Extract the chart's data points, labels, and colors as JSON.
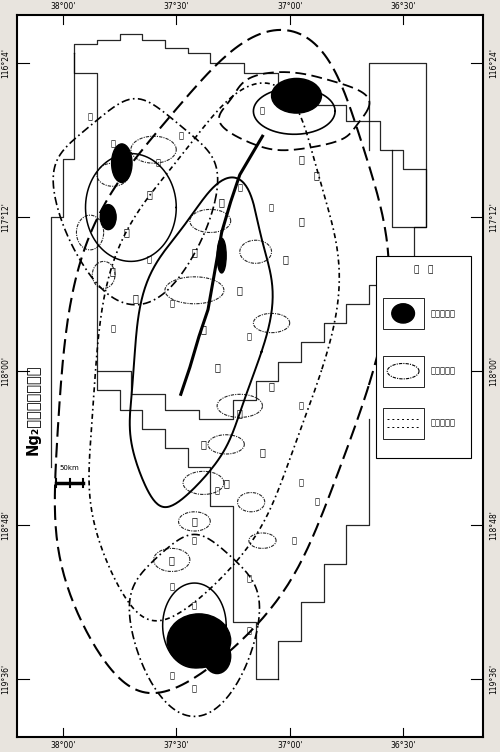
{
  "title": "Ng₂地热单元划分图",
  "legend_high": "高温热存型",
  "legend_mid": "中温热存型",
  "legend_low": "低温热存型",
  "legend_title": "图   例",
  "bg_color": "#e8e4de",
  "map_bg": "#ffffff",
  "x_labels_top": [
    "38°00'",
    "37°30'",
    "37°00'",
    "36°30'"
  ],
  "x_labels_bottom": [
    "38°00'",
    "37°30'",
    "37°00'",
    "36°30'"
  ],
  "y_labels_right": [
    "119°36'",
    "118°48'",
    "118°00'",
    "117°12'",
    "116°24'"
  ],
  "y_labels_left": [
    "119°36'",
    "118°48'",
    "118°00'",
    "117°12'",
    "116°24'"
  ],
  "x_tick_positions": [
    36.5,
    37.0,
    37.5,
    38.0
  ],
  "y_tick_positions": [
    116.4,
    117.2,
    118.0,
    118.8,
    119.6
  ]
}
